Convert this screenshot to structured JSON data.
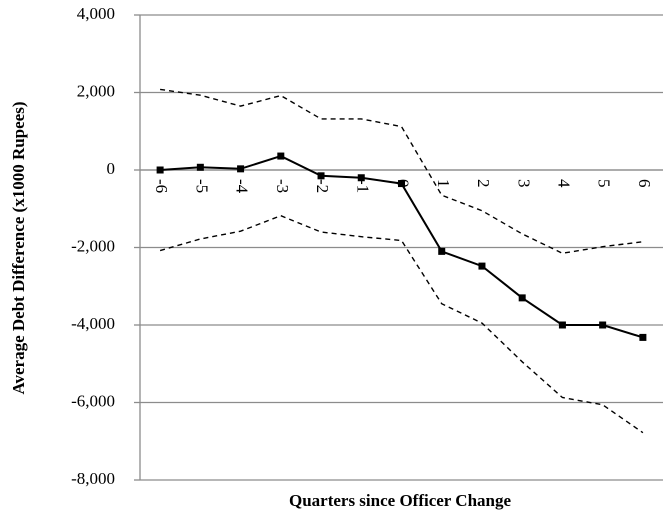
{
  "chart_data": {
    "type": "line",
    "y_label": "Average Debt Difference (x1000 Rupees)",
    "x_label": "Quarters since Officer Change",
    "x": [
      -6,
      -5,
      -4,
      -3,
      -2,
      -1,
      0,
      1,
      2,
      3,
      4,
      5,
      6
    ],
    "xlim": [
      -6.5,
      6.5
    ],
    "xticks": [
      -6,
      -5,
      -4,
      -3,
      -2,
      -1,
      0,
      1,
      2,
      3,
      4,
      5,
      6
    ],
    "ylim": [
      -8000,
      4000
    ],
    "yticks": [
      {
        "value": -8000,
        "label": "-8,000"
      },
      {
        "value": -6000,
        "label": "-6,000"
      },
      {
        "value": -4000,
        "label": "-4,000"
      },
      {
        "value": -2000,
        "label": "-2,000"
      },
      0,
      {
        "value": 2000,
        "label": "2,000"
      },
      {
        "value": 4000,
        "label": "4,000"
      }
    ],
    "grid": true,
    "series": [
      {
        "color": "#000000",
        "style": "solid",
        "marker": "square",
        "values": [
          0,
          70,
          30,
          360,
          -150,
          -200,
          -350,
          -2100,
          -2480,
          -3300,
          -4000,
          -4000,
          -4320
        ]
      },
      {
        "color": "#000000",
        "style": "dashed",
        "marker": "none",
        "values": [
          2080,
          1930,
          1650,
          1920,
          1320,
          1320,
          1120,
          -650,
          -1050,
          -1650,
          -2150,
          -1980,
          -1850
        ]
      },
      {
        "color": "#000000",
        "style": "dashed",
        "marker": "none",
        "values": [
          -2080,
          -1780,
          -1580,
          -1180,
          -1600,
          -1720,
          -1820,
          -3450,
          -3950,
          -4950,
          -5870,
          -6060,
          -6780
        ]
      }
    ]
  }
}
